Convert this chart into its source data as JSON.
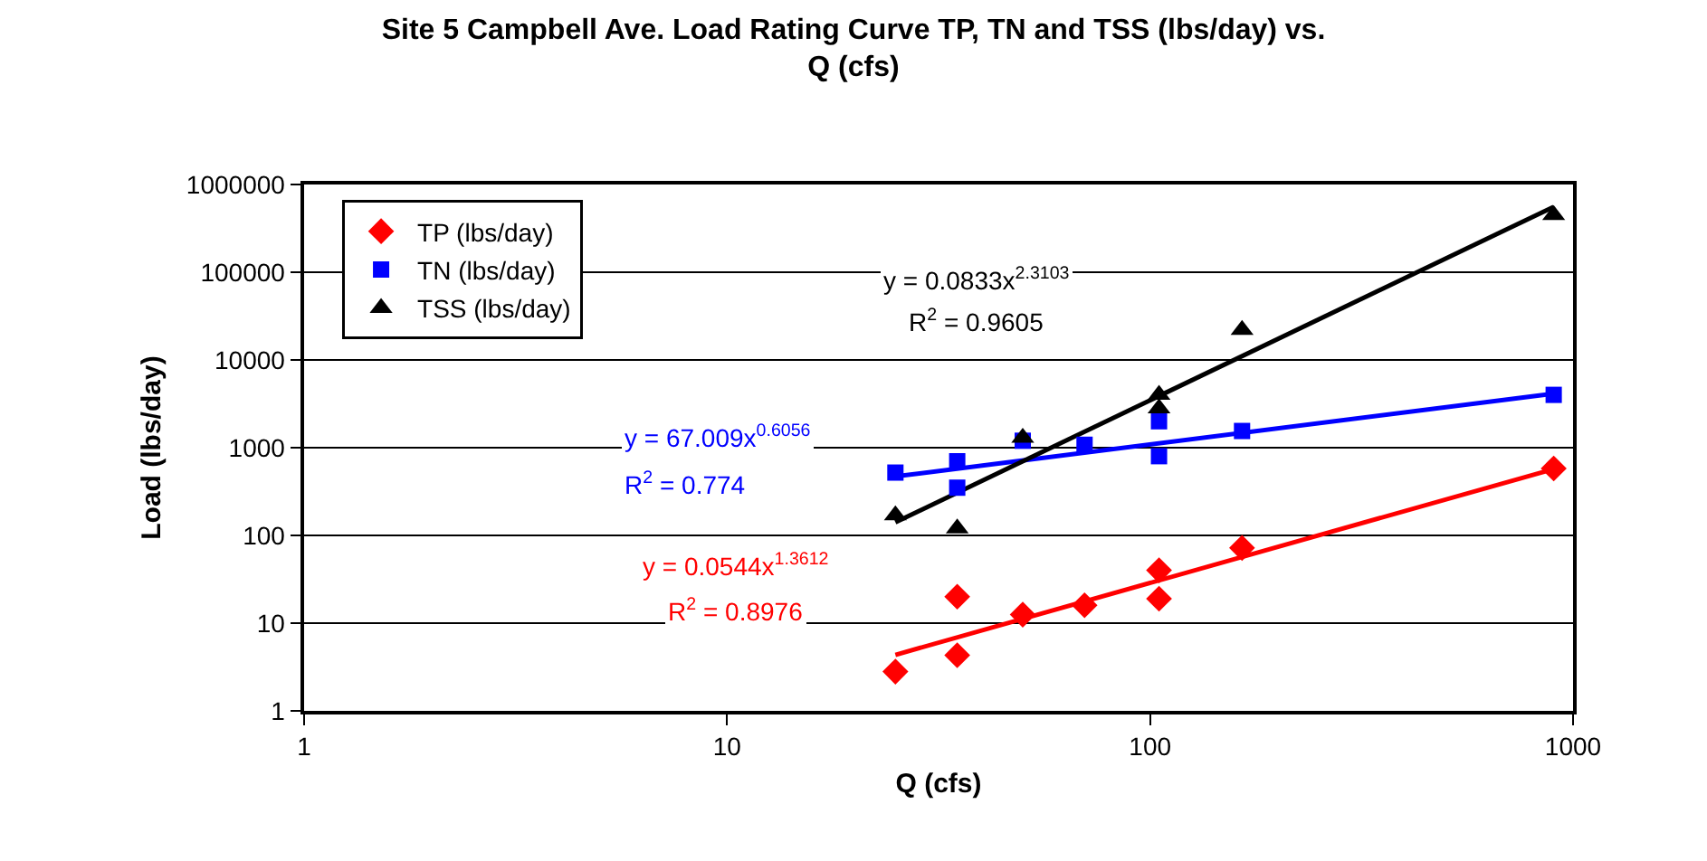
{
  "chart_data": {
    "type": "scatter",
    "title": "Site 5 Campbell Ave. Load Rating Curve TP, TN and TSS (lbs/day) vs. Q (cfs)",
    "xlabel": "Q (cfs)",
    "ylabel": "Load (lbs/day)",
    "series": [
      {
        "name": "TP (lbs/day)",
        "color": "#ff0000",
        "marker": "diamond",
        "x": [
          25,
          35,
          35,
          50,
          70,
          105,
          105,
          165,
          900
        ],
        "values": [
          2.8,
          20,
          4.3,
          12.5,
          16,
          40,
          19,
          72,
          580
        ]
      },
      {
        "name": "TN (lbs/day)",
        "color": "#0000ff",
        "marker": "square",
        "x": [
          25,
          35,
          35,
          50,
          70,
          105,
          105,
          165,
          900
        ],
        "values": [
          520,
          700,
          350,
          1200,
          1080,
          2000,
          800,
          1550,
          4000
        ]
      },
      {
        "name": "TSS (lbs/day)",
        "color": "#000000",
        "marker": "triangle",
        "x": [
          25,
          35,
          50,
          105,
          105,
          165,
          900
        ],
        "values": [
          170,
          120,
          1300,
          4000,
          2800,
          22000,
          450000
        ]
      },
      {
        "type": "line",
        "color": "#ff0000",
        "marker": "none",
        "x": [
          25,
          900
        ],
        "values": [
          4.35,
          571
        ]
      },
      {
        "type": "line",
        "color": "#0000ff",
        "marker": "none",
        "x": [
          25,
          900
        ],
        "values": [
          470,
          4121
        ]
      },
      {
        "type": "line",
        "color": "#000000",
        "marker": "none",
        "x": [
          25,
          900
        ],
        "values": [
          141,
          557000
        ]
      }
    ],
    "annotations": [
      "y = 0.0833x$^{2.3103}$",
      "R$^{2}$ = 0.9605",
      "y = 67.009x$^{0.6056}$",
      "R$^{2}$ = 0.774",
      "y = 0.0544x$^{1.3612}$",
      "R$^{2}$ = 0.8976"
    ],
    "log": "xy",
    "xlim": [
      1,
      1000
    ],
    "xticks": [
      1,
      10,
      100,
      1000
    ],
    "ylim": [
      1,
      1000000
    ],
    "yticks": [
      1,
      10,
      100,
      1000,
      10000,
      100000,
      1000000
    ],
    "grid": "y",
    "legend": "top left"
  }
}
